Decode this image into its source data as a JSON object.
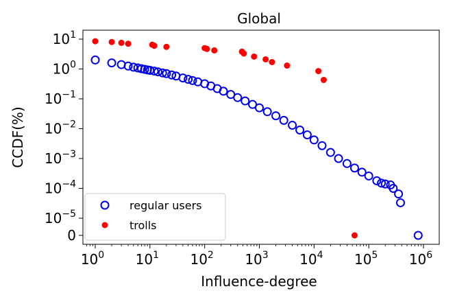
{
  "chart_data": {
    "type": "scatter",
    "title": "Global",
    "xlabel": "Influence-degree",
    "ylabel": "CCDF(%)",
    "x_scale": "log",
    "y_scale": "log (with 0 shown below axis break)",
    "xlim": [
      0.6,
      1500000
    ],
    "ylim_log": [
      6e-06,
      16
    ],
    "grid": false,
    "legend_position": "bottom-left",
    "x_ticks": [
      {
        "base": "10",
        "exp": "0"
      },
      {
        "base": "10",
        "exp": "1"
      },
      {
        "base": "10",
        "exp": "2"
      },
      {
        "base": "10",
        "exp": "3"
      },
      {
        "base": "10",
        "exp": "4"
      },
      {
        "base": "10",
        "exp": "5"
      },
      {
        "base": "10",
        "exp": "6"
      }
    ],
    "y_ticks": [
      {
        "base": "0",
        "exp": ""
      },
      {
        "base": "10",
        "exp": "−5"
      },
      {
        "base": "10",
        "exp": "−4"
      },
      {
        "base": "10",
        "exp": "−3"
      },
      {
        "base": "10",
        "exp": "−2"
      },
      {
        "base": "10",
        "exp": "−1"
      },
      {
        "base": "10",
        "exp": "0"
      },
      {
        "base": "10",
        "exp": "1"
      }
    ],
    "series": [
      {
        "name": "regular users",
        "marker": "hollow-circle",
        "color": "#0000ee",
        "points": [
          [
            1,
            2.0
          ],
          [
            2,
            1.6
          ],
          [
            3,
            1.4
          ],
          [
            4,
            1.25
          ],
          [
            5,
            1.15
          ],
          [
            6,
            1.08
          ],
          [
            7,
            1.02
          ],
          [
            8,
            0.97
          ],
          [
            9,
            0.93
          ],
          [
            10,
            0.9
          ],
          [
            12,
            0.85
          ],
          [
            14,
            0.8
          ],
          [
            17,
            0.74
          ],
          [
            20,
            0.7
          ],
          [
            25,
            0.63
          ],
          [
            30,
            0.58
          ],
          [
            40,
            0.5
          ],
          [
            50,
            0.45
          ],
          [
            60,
            0.41
          ],
          [
            75,
            0.37
          ],
          [
            100,
            0.32
          ],
          [
            130,
            0.27
          ],
          [
            170,
            0.22
          ],
          [
            220,
            0.18
          ],
          [
            300,
            0.14
          ],
          [
            400,
            0.11
          ],
          [
            550,
            0.085
          ],
          [
            750,
            0.065
          ],
          [
            1000,
            0.05
          ],
          [
            1400,
            0.037
          ],
          [
            2000,
            0.027
          ],
          [
            2800,
            0.019
          ],
          [
            4000,
            0.013
          ],
          [
            5500,
            0.009
          ],
          [
            7500,
            0.0062
          ],
          [
            10000,
            0.0042
          ],
          [
            14000,
            0.0027
          ],
          [
            20000,
            0.0016
          ],
          [
            28000,
            0.001
          ],
          [
            40000,
            0.00068
          ],
          [
            55000,
            0.00048
          ],
          [
            75000,
            0.00035
          ],
          [
            100000,
            0.00026
          ],
          [
            140000,
            0.00018
          ],
          [
            170000,
            0.00015
          ],
          [
            200000,
            0.00014
          ],
          [
            250000,
            0.00013
          ],
          [
            280000,
            0.0001
          ],
          [
            350000,
            6.5e-05
          ],
          [
            380000,
            3.3e-05
          ],
          [
            800000,
            0
          ]
        ]
      },
      {
        "name": "trolls",
        "marker": "filled-circle",
        "color": "#ff0000",
        "points": [
          [
            1,
            8.5
          ],
          [
            2,
            8.0
          ],
          [
            3,
            7.5
          ],
          [
            4,
            7.0
          ],
          [
            11,
            6.5
          ],
          [
            12,
            6.0
          ],
          [
            20,
            5.5
          ],
          [
            100,
            5.0
          ],
          [
            110,
            4.7
          ],
          [
            150,
            4.2
          ],
          [
            480,
            3.8
          ],
          [
            520,
            3.3
          ],
          [
            800,
            2.6
          ],
          [
            1300,
            2.1
          ],
          [
            1700,
            1.7
          ],
          [
            3200,
            1.3
          ],
          [
            12000,
            0.85
          ],
          [
            15000,
            0.43
          ],
          [
            55000,
            0
          ]
        ]
      }
    ]
  }
}
